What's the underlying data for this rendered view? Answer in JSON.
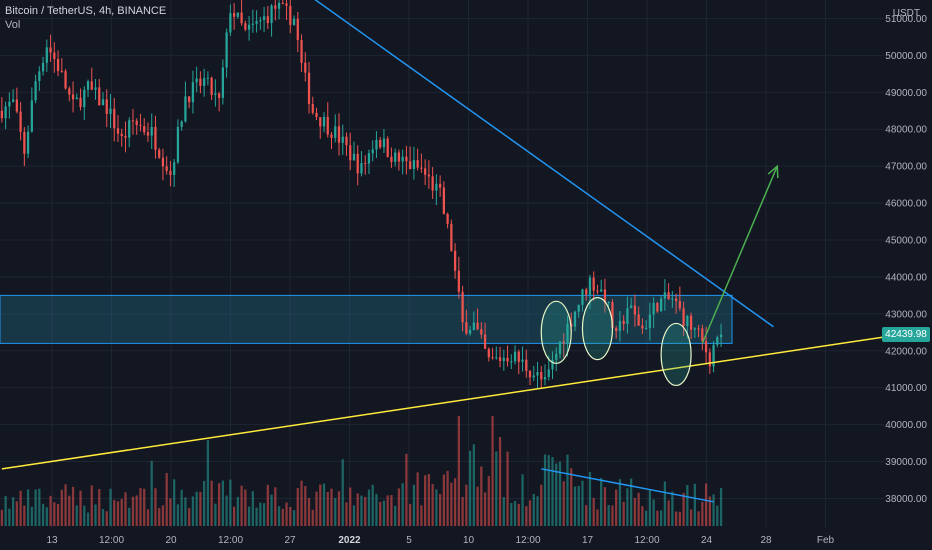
{
  "header": {
    "title": "Bitcoin / TetherUS, 4h, BINANCE",
    "indicator": "Vol"
  },
  "currency_unit": "USDT",
  "last_price": "42439.98",
  "colors": {
    "background": "#131722",
    "grid": "#1f2433",
    "up": "#26a69a",
    "down": "#ef5350",
    "axis_text": "#b2b5be",
    "zone_fill": "#1e5f74",
    "zone_stroke": "#2196f3",
    "resistance_line": "#2196f3",
    "support_line": "#ffeb3b",
    "arrow": "#4caf50",
    "ellipse": "#e8f5c8"
  },
  "chart_data": {
    "type": "candlestick",
    "symbol": "Bitcoin / TetherUS",
    "interval": "4h",
    "exchange": "BINANCE",
    "y_axis": {
      "unit": "USDT",
      "range": [
        37200,
        51500
      ],
      "ticks": [
        "38000.00",
        "39000.00",
        "40000.00",
        "41000.00",
        "42000.00",
        "43000.00",
        "44000.00",
        "45000.00",
        "46000.00",
        "47000.00",
        "48000.00",
        "49000.00",
        "50000.00",
        "51000.00"
      ]
    },
    "x_axis": {
      "ticks": [
        "13",
        "12:00",
        "20",
        "12:00",
        "27",
        "2022",
        "5",
        "10",
        "12:00",
        "17",
        "12:00",
        "24",
        "28",
        "Feb"
      ]
    },
    "price_path": [
      [
        0,
        48500
      ],
      [
        4,
        48700
      ],
      [
        7,
        47400
      ],
      [
        10,
        49300
      ],
      [
        13,
        50300
      ],
      [
        16,
        49700
      ],
      [
        20,
        48600
      ],
      [
        24,
        49100
      ],
      [
        29,
        48600
      ],
      [
        33,
        47700
      ],
      [
        36,
        48200
      ],
      [
        41,
        47900
      ],
      [
        46,
        46800
      ],
      [
        50,
        48900
      ],
      [
        55,
        49300
      ],
      [
        59,
        48700
      ],
      [
        62,
        51300
      ],
      [
        66,
        50600
      ],
      [
        70,
        50900
      ],
      [
        74,
        51300
      ],
      [
        79,
        51000
      ],
      [
        81,
        49700
      ],
      [
        84,
        48500
      ],
      [
        90,
        47900
      ],
      [
        97,
        46900
      ],
      [
        101,
        47800
      ],
      [
        106,
        47200
      ],
      [
        113,
        46900
      ],
      [
        118,
        46200
      ],
      [
        121,
        44800
      ],
      [
        124,
        42700
      ],
      [
        127,
        42700
      ],
      [
        131,
        41700
      ],
      [
        137,
        41900
      ],
      [
        143,
        41400
      ],
      [
        146,
        41100
      ],
      [
        150,
        42200
      ],
      [
        154,
        43100
      ],
      [
        158,
        43900
      ],
      [
        162,
        43500
      ],
      [
        165,
        42300
      ],
      [
        168,
        43200
      ],
      [
        172,
        42600
      ],
      [
        176,
        43300
      ],
      [
        180,
        43400
      ],
      [
        183,
        42900
      ],
      [
        187,
        42400
      ],
      [
        190,
        41800
      ],
      [
        192,
        42440
      ]
    ],
    "volume_path": [
      [
        0,
        0.25
      ],
      [
        20,
        0.3
      ],
      [
        60,
        0.35
      ],
      [
        100,
        0.3
      ],
      [
        121,
        0.55
      ],
      [
        126,
        0.65
      ],
      [
        140,
        0.45
      ],
      [
        150,
        0.55
      ],
      [
        160,
        0.35
      ],
      [
        192,
        0.3
      ]
    ],
    "last_price": 42439.98,
    "annotations": [
      {
        "type": "rectangle",
        "label": "zone",
        "price_top": 43500,
        "price_bottom": 42200
      },
      {
        "type": "trendline",
        "label": "resistance",
        "start": [
          81,
          51700
        ],
        "end": [
          206,
          42650
        ]
      },
      {
        "type": "trendline",
        "label": "support",
        "start": [
          0,
          38800
        ],
        "end": [
          236,
          42380
        ]
      },
      {
        "type": "trendline",
        "label": "volume-downtrend",
        "start": [
          144,
          0.52
        ],
        "end": [
          190,
          0.22
        ]
      },
      {
        "type": "arrow",
        "label": "breakout-target",
        "start": [
          187,
          42200
        ],
        "end": [
          207,
          47000
        ]
      },
      {
        "type": "ellipse",
        "label": "touch-1",
        "center": [
          148,
          42500
        ]
      },
      {
        "type": "ellipse",
        "label": "touch-2",
        "center": [
          159,
          42600
        ]
      },
      {
        "type": "ellipse",
        "label": "touch-3",
        "center": [
          180,
          41900
        ]
      }
    ]
  }
}
